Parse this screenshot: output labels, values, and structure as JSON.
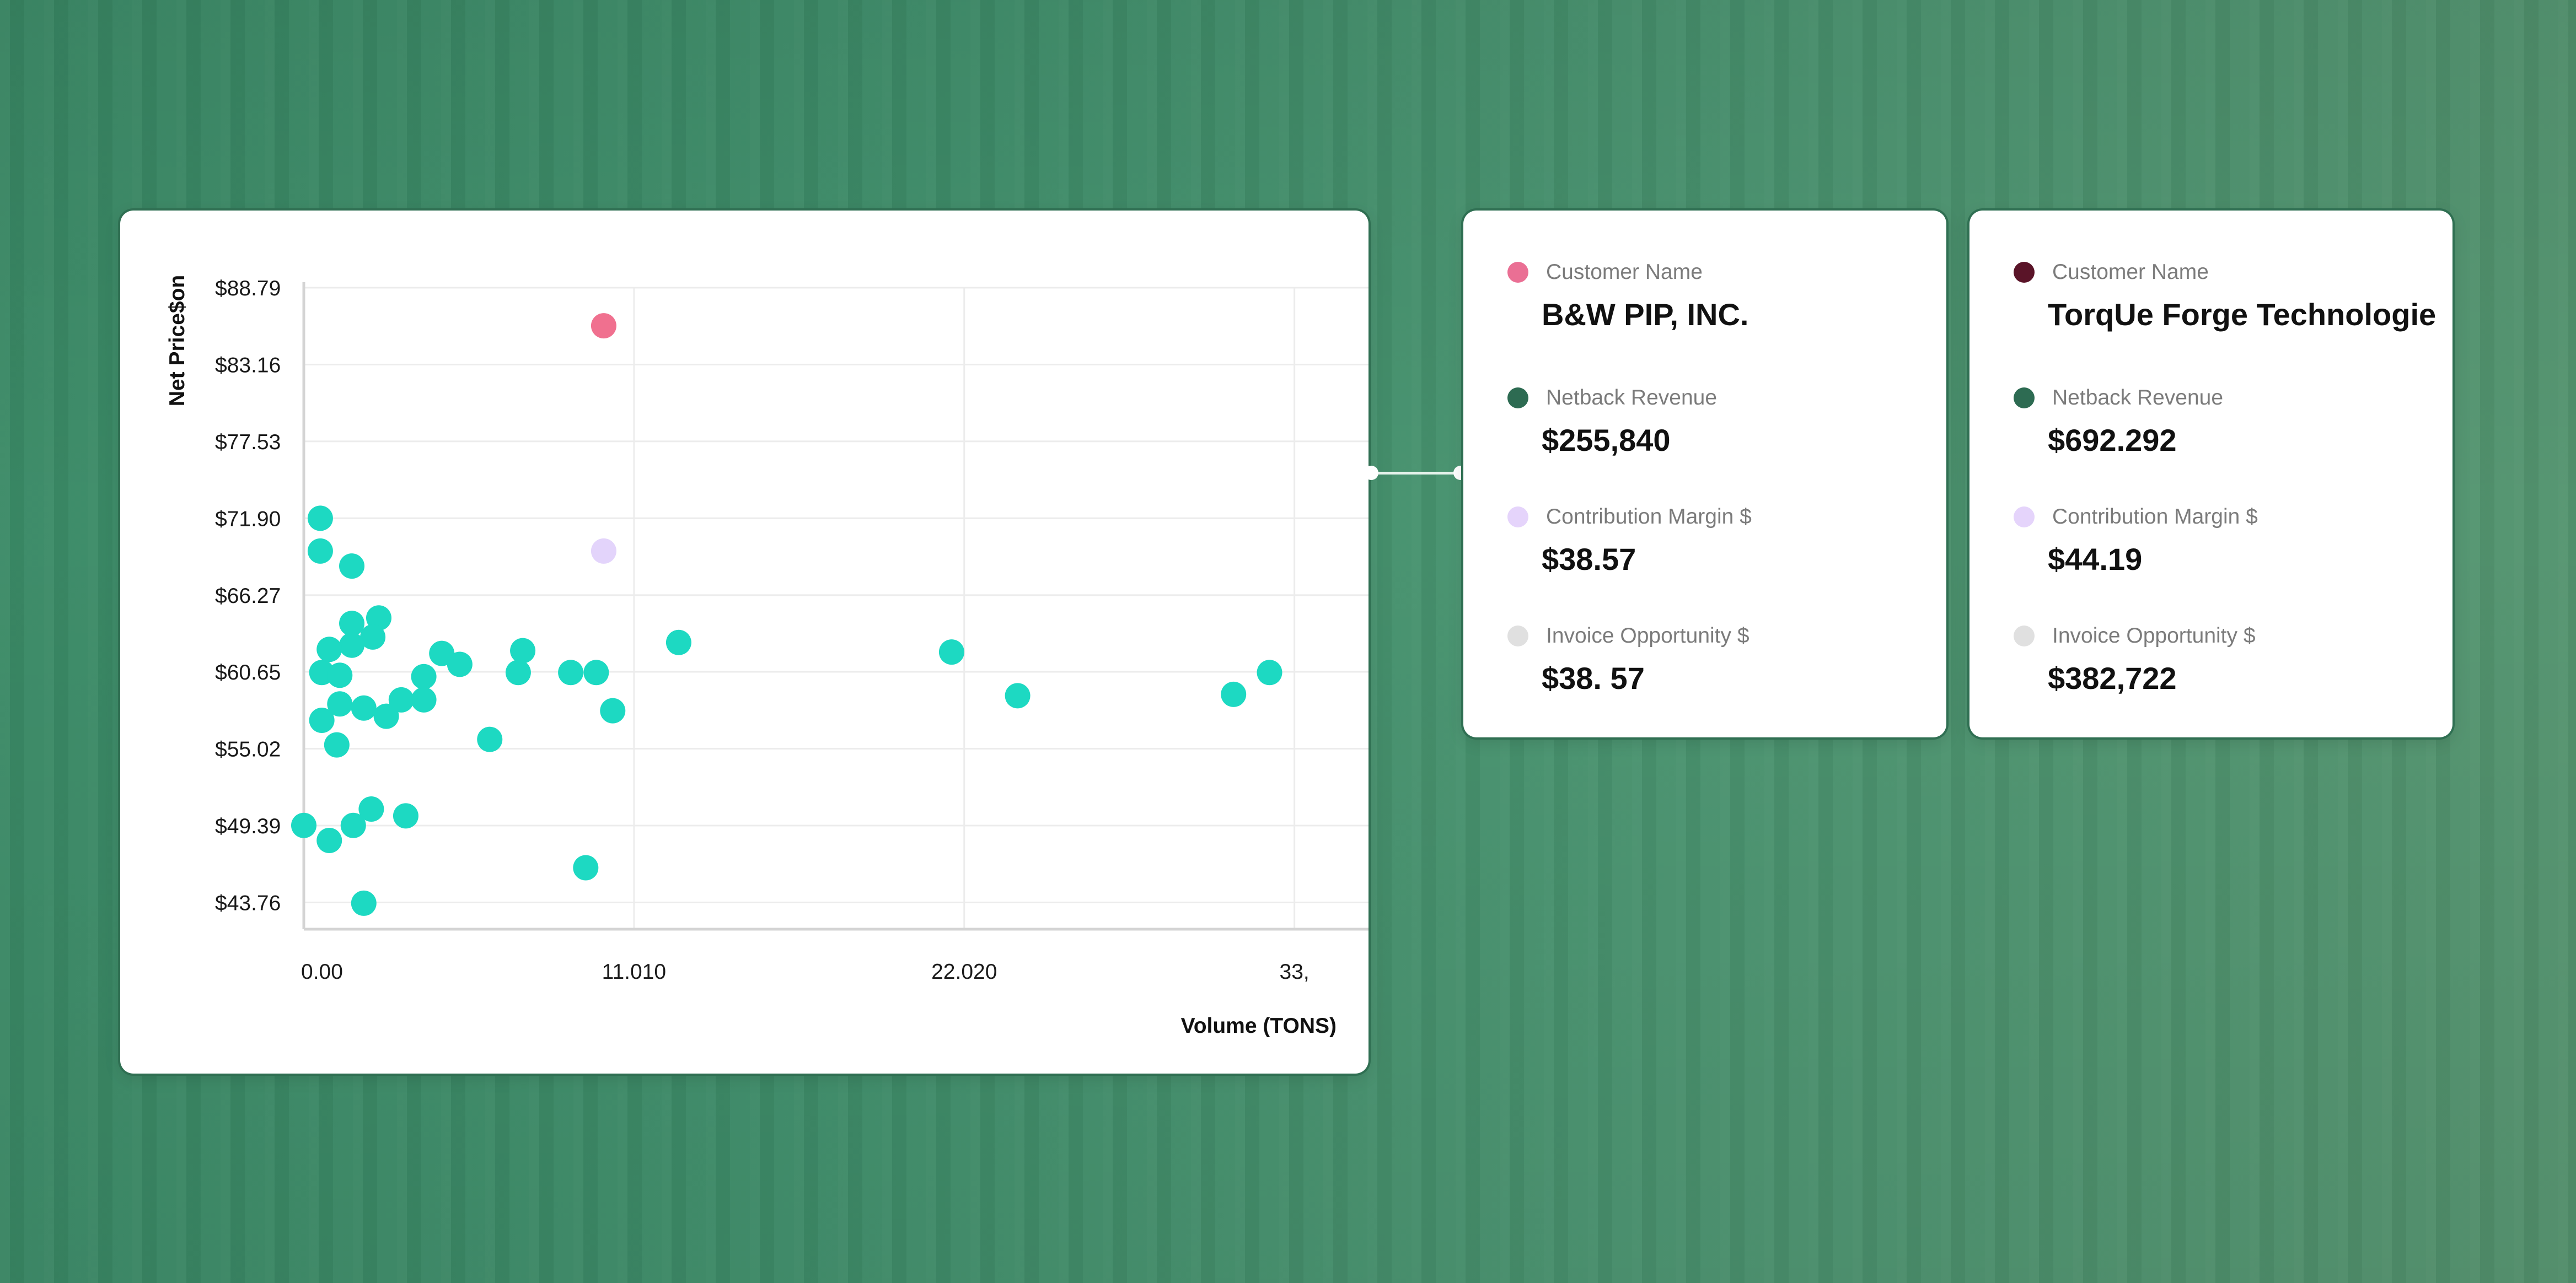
{
  "colors": {
    "point": "#1dd9c2",
    "highlight_pink": "#f0708f",
    "highlight_lavender": "#e3d4fb",
    "dot_customer_card1": "#ea6f94",
    "dot_customer_card2": "#5a1428",
    "dot_netback": "#2d6b52",
    "dot_contribution": "#e5d4fb",
    "dot_invoice": "#e0e0e0"
  },
  "chart_data": {
    "type": "scatter",
    "ylabel": "Net Price$on",
    "xlabel": "Volume (TONS)",
    "x_tick_labels": [
      "0.00",
      "11.010",
      "22.020",
      "33,"
    ],
    "x_ticks": [
      0,
      11.01,
      22.02,
      33.03
    ],
    "y_tick_labels": [
      "$88.79",
      "$83.16",
      "$77.53",
      "$71.90",
      "$66.27",
      "$60.65",
      "$55.02",
      "$49.39",
      "$43.76"
    ],
    "y_ticks": [
      88.79,
      83.16,
      77.53,
      71.9,
      66.27,
      60.65,
      55.02,
      49.39,
      43.76
    ],
    "xlim": [
      0,
      35.5
    ],
    "ylim": [
      41.8,
      88.79
    ],
    "grid": true,
    "points": [
      {
        "x": 0.55,
        "y": 71.9
      },
      {
        "x": 0.55,
        "y": 69.5
      },
      {
        "x": 1.6,
        "y": 68.4
      },
      {
        "x": 1.6,
        "y": 64.2
      },
      {
        "x": 2.5,
        "y": 64.6
      },
      {
        "x": 2.3,
        "y": 63.2
      },
      {
        "x": 1.6,
        "y": 62.6
      },
      {
        "x": 0.85,
        "y": 62.3
      },
      {
        "x": 0.6,
        "y": 60.6
      },
      {
        "x": 1.2,
        "y": 60.4
      },
      {
        "x": 1.2,
        "y": 58.3
      },
      {
        "x": 2.0,
        "y": 58.0
      },
      {
        "x": 0.6,
        "y": 57.1
      },
      {
        "x": 1.1,
        "y": 55.3
      },
      {
        "x": 2.75,
        "y": 57.4
      },
      {
        "x": 3.25,
        "y": 58.6
      },
      {
        "x": 4.0,
        "y": 58.6
      },
      {
        "x": 4.0,
        "y": 60.3
      },
      {
        "x": 4.6,
        "y": 62.0
      },
      {
        "x": 5.2,
        "y": 61.2
      },
      {
        "x": 6.2,
        "y": 55.7
      },
      {
        "x": 7.15,
        "y": 60.6
      },
      {
        "x": 7.3,
        "y": 62.2
      },
      {
        "x": 8.9,
        "y": 60.6
      },
      {
        "x": 9.75,
        "y": 60.6
      },
      {
        "x": 10.3,
        "y": 57.8
      },
      {
        "x": 12.5,
        "y": 62.8
      },
      {
        "x": 21.6,
        "y": 62.1
      },
      {
        "x": 23.8,
        "y": 58.9
      },
      {
        "x": 31.0,
        "y": 59.0
      },
      {
        "x": 32.2,
        "y": 60.6
      },
      {
        "x": 0.0,
        "y": 49.4
      },
      {
        "x": 0.85,
        "y": 48.3
      },
      {
        "x": 1.65,
        "y": 49.4
      },
      {
        "x": 2.25,
        "y": 50.6
      },
      {
        "x": 3.4,
        "y": 50.1
      },
      {
        "x": 2.0,
        "y": 43.7
      },
      {
        "x": 9.4,
        "y": 46.3
      }
    ],
    "highlighted_points": [
      {
        "x": 10.0,
        "y": 86.0,
        "color": "pink"
      },
      {
        "x": 10.0,
        "y": 69.5,
        "color": "lavender"
      }
    ]
  },
  "cards": [
    {
      "customer_label": "Customer Name",
      "customer_value": "B&W PIP, INC.",
      "netback_label": "Netback Revenue",
      "netback_value": "$255,840",
      "contribution_label": "Contribution Margin $",
      "contribution_value": "$38.57",
      "invoice_label": "Invoice Opportunity $",
      "invoice_value": "$38. 57"
    },
    {
      "customer_label": "Customer Name",
      "customer_value": "TorqUe Forge Technologie",
      "netback_label": "Netback Revenue",
      "netback_value": "$692.292",
      "contribution_label": "Contribution Margin $",
      "contribution_value": "$44.19",
      "invoice_label": "Invoice Opportunity $",
      "invoice_value": "$382,722"
    }
  ]
}
